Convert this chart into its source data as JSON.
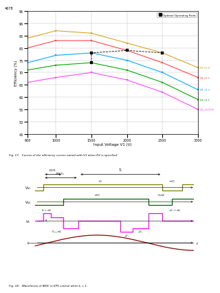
{
  "page_header": "4678",
  "fig17": {
    "caption": "Fig. 17.   Curves of the efficiency curves varied with V1 when D2 is specified.",
    "xlabel": "Input Voltage V1 (V)",
    "ylabel": "Efficiency (%)",
    "xlim": [
      600,
      3000
    ],
    "ylim": [
      45,
      95
    ],
    "xticks": [
      600,
      1000,
      1500,
      2000,
      2500,
      3000
    ],
    "yticks": [
      45,
      50,
      55,
      60,
      65,
      70,
      75,
      80,
      85,
      90,
      95
    ],
    "legend_label": "Optimal Operating Point",
    "series": [
      {
        "label": "D2=0.8",
        "color": "#DAA520",
        "x": [
          600,
          1000,
          1500,
          2000,
          2500,
          3000
        ],
        "y": [
          84,
          87,
          86,
          82,
          78,
          72
        ],
        "opt_x": 2500,
        "opt_y": 78
      },
      {
        "label": "D2=0.5",
        "color": "#FF4444",
        "x": [
          600,
          1000,
          1500,
          2000,
          2500,
          3000
        ],
        "y": [
          80,
          83,
          83,
          79,
          74,
          68
        ],
        "opt_x": 2000,
        "opt_y": 79
      },
      {
        "label": "D2=0.3",
        "color": "#00AAFF",
        "x": [
          600,
          1000,
          1500,
          2000,
          2500,
          3000
        ],
        "y": [
          74,
          77,
          78,
          75,
          70,
          63
        ],
        "opt_x": 1500,
        "opt_y": 78
      },
      {
        "label": "D2=0.1",
        "color": "#00AA00",
        "x": [
          600,
          1000,
          1500,
          2000,
          2500,
          3000
        ],
        "y": [
          71,
          73,
          74,
          71,
          66,
          59
        ],
        "opt_x": 1500,
        "opt_y": 74
      },
      {
        "label": "D2=0(TPS)",
        "color": "#FF44FF",
        "x": [
          600,
          1000,
          1500,
          2000,
          2500,
          3000
        ],
        "y": [
          66,
          68,
          70,
          67,
          62,
          55
        ],
        "opt_x": null,
        "opt_y": null
      }
    ]
  },
  "fig18": {
    "caption": "Fig. 18.   Waveforms of IBDC in EPS control when k < 1.",
    "vb1_color": "#808000",
    "vb2_color": "#006400",
    "vk_color": "#FF00FF",
    "il_color": "#8B0000",
    "arrow_color": "#000000"
  }
}
